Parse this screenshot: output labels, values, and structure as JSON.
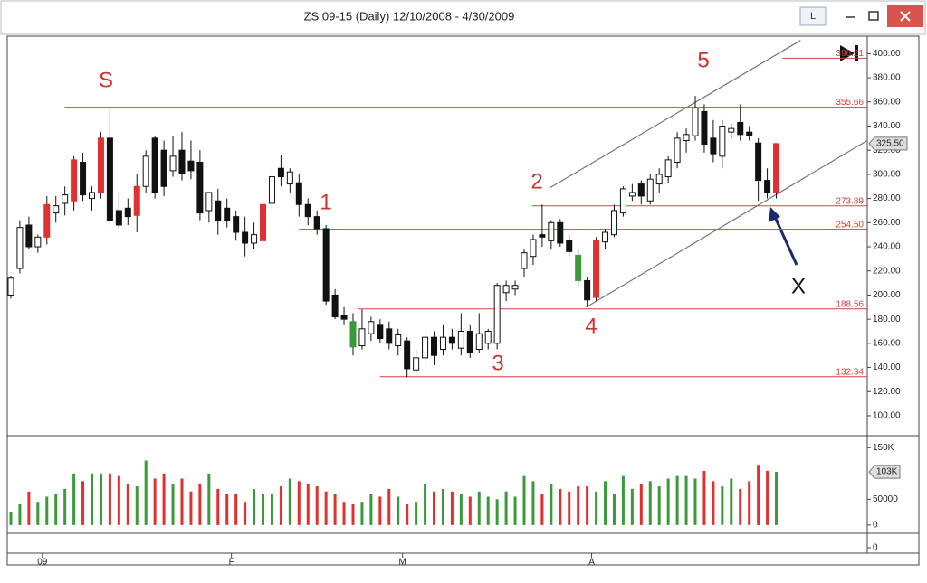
{
  "window": {
    "title": "ZS 09-15 (Daily)  12/10/2008 - 4/30/2009",
    "button": "L"
  },
  "chart_data": {
    "type": "candlestick",
    "categories": [
      null,
      null,
      null,
      null,
      "09",
      null,
      null,
      null,
      null,
      null,
      null,
      null,
      null,
      null,
      null,
      null,
      null,
      null,
      null,
      null,
      null,
      null,
      null,
      null,
      null,
      "F",
      null,
      null,
      null,
      null,
      null,
      null,
      null,
      null,
      null,
      null,
      null,
      null,
      null,
      null,
      null,
      null,
      null,
      null,
      "M",
      null,
      null,
      null,
      null,
      null,
      null,
      null,
      null,
      null,
      null,
      null,
      null,
      null,
      null,
      null,
      null,
      null,
      null,
      null,
      null,
      "A",
      null,
      null,
      null,
      null,
      null,
      null,
      null,
      null,
      null,
      null,
      null,
      null,
      null,
      null,
      null,
      null,
      null,
      null,
      null,
      null
    ],
    "open": [
      200,
      222,
      258,
      240,
      248,
      268,
      276,
      278,
      310,
      280,
      285,
      330,
      270,
      272,
      266,
      290,
      330,
      320,
      303,
      320,
      311,
      310,
      270,
      278,
      272,
      265,
      252,
      243,
      245,
      276,
      305,
      292,
      293,
      275,
      265,
      255,
      200,
      183,
      178,
      158,
      168,
      175,
      172,
      158,
      162,
      138,
      148,
      165,
      155,
      165,
      156,
      170,
      155,
      160,
      160,
      202,
      205,
      222,
      232,
      250,
      245,
      260,
      245,
      233,
      212,
      198,
      244,
      250,
      268,
      282,
      292,
      278,
      292,
      298,
      310,
      328,
      332,
      352,
      330,
      315,
      335,
      343,
      335,
      326,
      295,
      285
    ],
    "high": [
      216,
      262,
      265,
      250,
      282,
      282,
      290,
      315,
      318,
      290,
      335,
      355,
      285,
      280,
      300,
      320,
      332,
      328,
      332,
      335,
      328,
      320,
      285,
      288,
      280,
      270,
      265,
      260,
      280,
      305,
      316,
      305,
      300,
      280,
      270,
      258,
      205,
      190,
      185,
      188,
      182,
      180,
      178,
      172,
      165,
      155,
      170,
      170,
      175,
      172,
      185,
      175,
      185,
      172,
      210,
      212,
      212,
      238,
      250,
      275,
      262,
      263,
      250,
      238,
      215,
      248,
      255,
      275,
      290,
      292,
      295,
      300,
      305,
      315,
      335,
      338,
      365,
      358,
      345,
      345,
      342,
      358,
      340,
      330,
      305,
      325
    ],
    "low": [
      197,
      218,
      238,
      235,
      242,
      260,
      266,
      270,
      278,
      270,
      280,
      258,
      255,
      258,
      252,
      285,
      280,
      282,
      298,
      295,
      296,
      262,
      260,
      250,
      256,
      245,
      232,
      238,
      240,
      270,
      290,
      285,
      265,
      258,
      250,
      192,
      180,
      175,
      150,
      155,
      162,
      160,
      155,
      150,
      132,
      135,
      142,
      142,
      150,
      155,
      150,
      148,
      152,
      155,
      155,
      195,
      200,
      215,
      225,
      240,
      238,
      240,
      232,
      208,
      190,
      195,
      238,
      248,
      265,
      278,
      275,
      275,
      285,
      293,
      305,
      318,
      328,
      318,
      310,
      305,
      330,
      328,
      328,
      278,
      280,
      280
    ],
    "close": [
      214,
      256,
      240,
      248,
      275,
      274,
      283,
      312,
      283,
      285,
      330,
      262,
      258,
      265,
      290,
      315,
      285,
      290,
      315,
      301,
      303,
      268,
      285,
      262,
      262,
      252,
      243,
      250,
      275,
      298,
      298,
      302,
      275,
      265,
      255,
      195,
      182,
      180,
      157,
      172,
      178,
      164,
      160,
      167,
      139,
      148,
      165,
      150,
      165,
      160,
      170,
      152,
      168,
      170,
      208,
      208,
      208,
      235,
      246,
      248,
      260,
      243,
      236,
      212,
      196,
      245,
      252,
      270,
      288,
      285,
      282,
      296,
      300,
      312,
      330,
      333,
      355,
      325,
      317,
      340,
      338,
      333,
      332,
      295,
      285,
      325.5
    ],
    "candle_colors": [
      "#ffffff",
      "#ffffff",
      "#111111",
      "#ffffff",
      "#e03030",
      "#ffffff",
      "#ffffff",
      "#e03030",
      "#111111",
      "#ffffff",
      "#e03030",
      "#111111",
      "#111111",
      "#111111",
      "#e03030",
      "#ffffff",
      "#111111",
      "#111111",
      "#ffffff",
      "#111111",
      "#111111",
      "#111111",
      "#ffffff",
      "#111111",
      "#111111",
      "#111111",
      "#111111",
      "#ffffff",
      "#e03030",
      "#ffffff",
      "#111111",
      "#ffffff",
      "#111111",
      "#111111",
      "#111111",
      "#111111",
      "#111111",
      "#111111",
      "#3a9a3a",
      "#ffffff",
      "#ffffff",
      "#111111",
      "#111111",
      "#ffffff",
      "#111111",
      "#ffffff",
      "#ffffff",
      "#111111",
      "#ffffff",
      "#111111",
      "#ffffff",
      "#111111",
      "#ffffff",
      "#ffffff",
      "#ffffff",
      "#ffffff",
      "#ffffff",
      "#ffffff",
      "#ffffff",
      "#111111",
      "#ffffff",
      "#111111",
      "#111111",
      "#3a9a3a",
      "#111111",
      "#e03030",
      "#ffffff",
      "#ffffff",
      "#ffffff",
      "#ffffff",
      "#111111",
      "#ffffff",
      "#ffffff",
      "#ffffff",
      "#ffffff",
      "#ffffff",
      "#ffffff",
      "#111111",
      "#111111",
      "#ffffff",
      "#ffffff",
      "#111111",
      "#111111",
      "#111111",
      "#111111",
      "#e03030"
    ],
    "volume": [
      25000,
      40000,
      65000,
      45000,
      55000,
      60000,
      70000,
      100000,
      85000,
      100000,
      100000,
      100000,
      95000,
      80000,
      75000,
      125000,
      90000,
      100000,
      80000,
      90000,
      65000,
      80000,
      100000,
      70000,
      60000,
      60000,
      45000,
      70000,
      60000,
      60000,
      75000,
      90000,
      85000,
      80000,
      75000,
      65000,
      60000,
      45000,
      40000,
      45000,
      60000,
      55000,
      70000,
      55000,
      40000,
      45000,
      80000,
      65000,
      70000,
      65000,
      60000,
      55000,
      65000,
      55000,
      50000,
      65000,
      55000,
      95000,
      85000,
      60000,
      80000,
      70000,
      65000,
      75000,
      75000,
      65000,
      85000,
      60000,
      95000,
      70000,
      80000,
      85000,
      75000,
      90000,
      95000,
      95000,
      90000,
      105000,
      85000,
      75000,
      90000,
      70000,
      85000,
      115000,
      105000,
      103000
    ],
    "volume_up_color": "#3a9a3a",
    "volume_down_color": "#e03030",
    "xlim": [
      -0.4,
      95.1
    ],
    "ylim": [
      85,
      413
    ],
    "yticks": [
      {
        "value": 100,
        "label": "100.00"
      },
      {
        "value": 120,
        "label": "120.00"
      },
      {
        "value": 140,
        "label": "140.00"
      },
      {
        "value": 160,
        "label": "160.00"
      },
      {
        "value": 180,
        "label": "180.00"
      },
      {
        "value": 200,
        "label": "200.00"
      },
      {
        "value": 220,
        "label": "220.00"
      },
      {
        "value": 240,
        "label": "240.00"
      },
      {
        "value": 260,
        "label": "260.00"
      },
      {
        "value": 280,
        "label": "280.00"
      },
      {
        "value": 300,
        "label": "300.00"
      },
      {
        "value": 320,
        "label": "320.00"
      },
      {
        "value": 340,
        "label": "340.00"
      },
      {
        "value": 360,
        "label": "360.00"
      },
      {
        "value": 380,
        "label": "380.00"
      },
      {
        "value": 400,
        "label": "400.00"
      }
    ],
    "volume_ylim": [
      -16000,
      168000
    ],
    "volume_yticks": [
      0,
      50000,
      {
        "value": 150000,
        "label": "150K"
      }
    ],
    "last_price": {
      "value": 325.5,
      "label": "325.50"
    },
    "last_volume": {
      "value": 103000,
      "label": "103K"
    },
    "indicator_ticks": [
      0
    ],
    "levels": [
      {
        "value": 396.21,
        "label": "396.21",
        "from": 85.7
      },
      {
        "value": 355.66,
        "label": "355.66",
        "from": 6
      },
      {
        "value": 273.89,
        "label": "273.89",
        "from": 57.9
      },
      {
        "value": 254.5,
        "label": "254.50",
        "from": 32
      },
      {
        "value": 188.56,
        "label": "188.56",
        "from": 38.5
      },
      {
        "value": 132.34,
        "label": "132.34",
        "from": 41
      }
    ],
    "level_color": "#d04040",
    "trendlines": [
      {
        "x": [
          59.8,
          87.7
        ],
        "y": [
          288.6,
          411
        ]
      },
      {
        "x": [
          63.9,
          95.1
        ],
        "y": [
          190,
          328
        ]
      }
    ],
    "trendline_color": "#777777",
    "annotations": [
      "S",
      "1",
      "2",
      "3",
      "4",
      "5",
      "X"
    ]
  }
}
